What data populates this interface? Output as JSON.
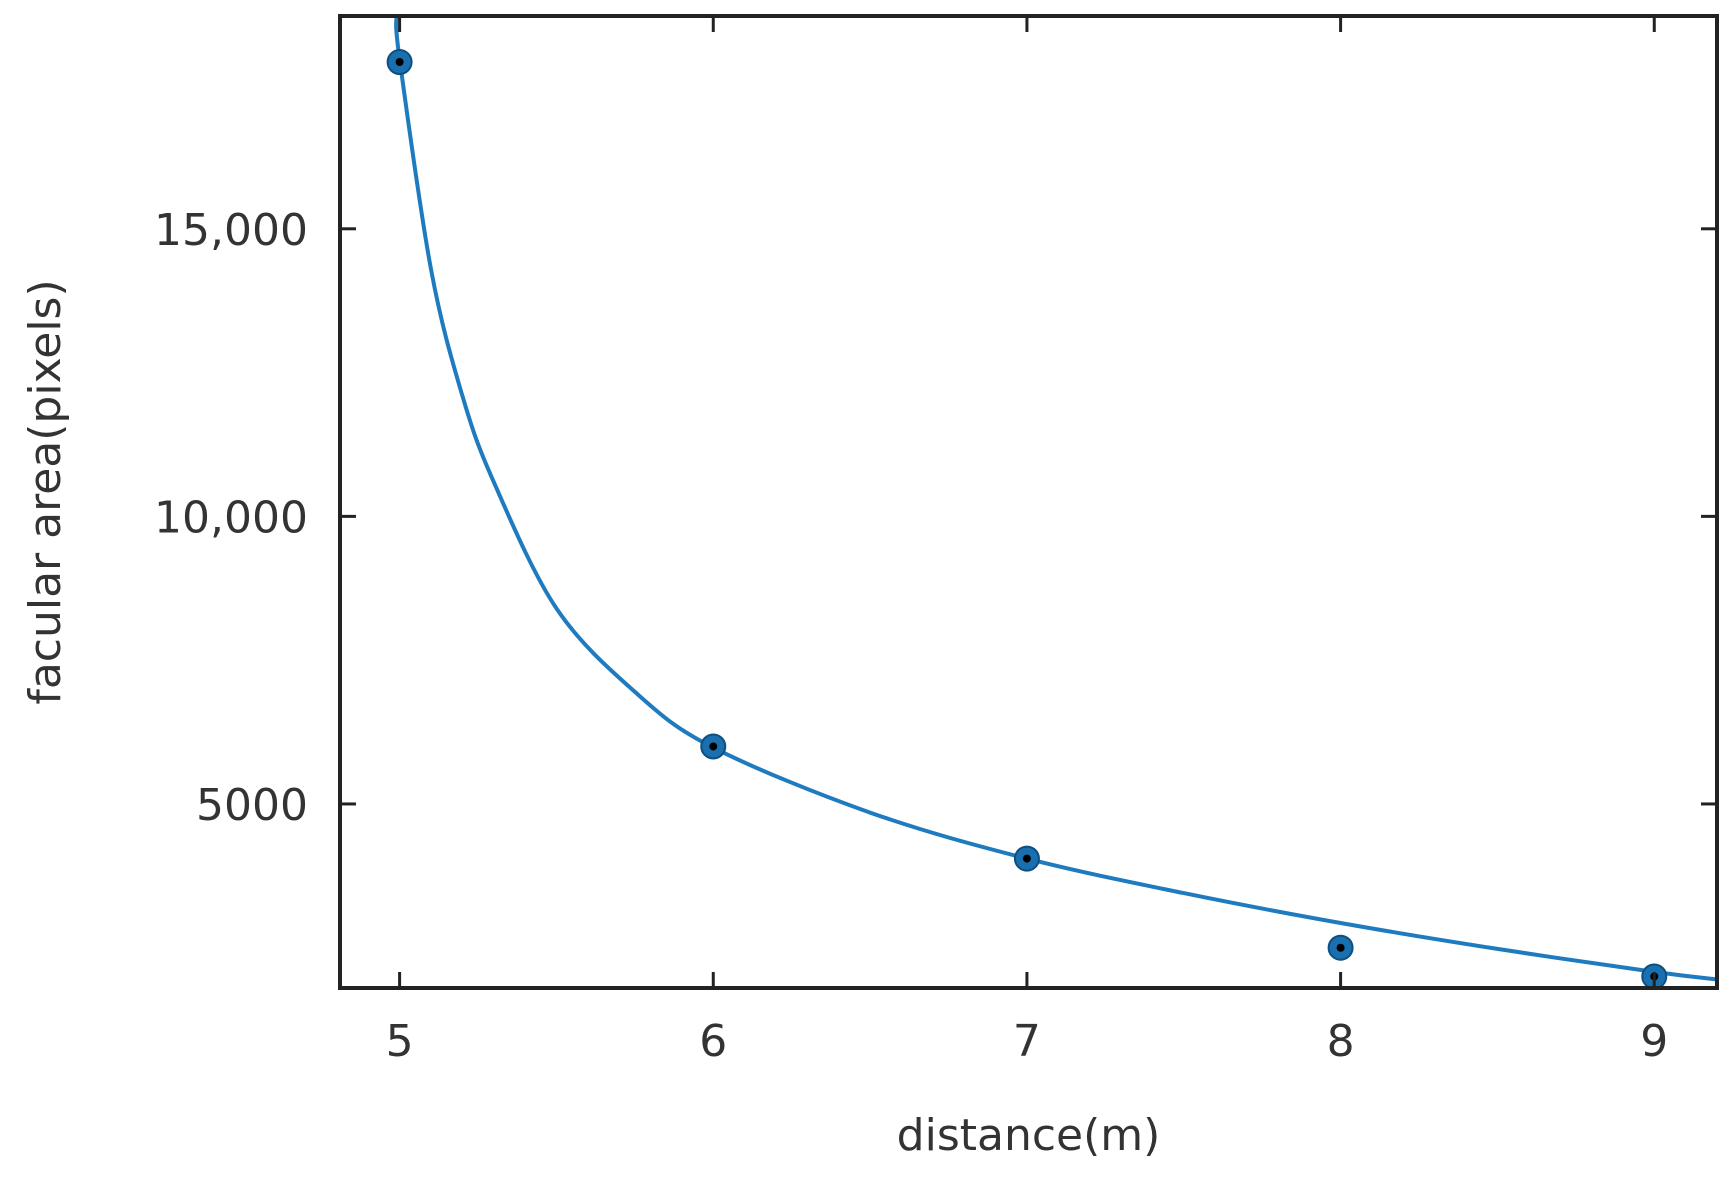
{
  "chart_data": {
    "type": "scatter",
    "title": "",
    "xlabel": "distance(m)",
    "ylabel": "facular area(pixels)",
    "xlim": [
      4.81,
      9.2
    ],
    "ylim": [
      1800,
      18700
    ],
    "x_ticks": [
      5,
      6,
      7,
      8,
      9
    ],
    "x_tick_labels": [
      "5",
      "6",
      "7",
      "8",
      "9"
    ],
    "y_ticks": [
      5000,
      10000,
      15000
    ],
    "y_tick_labels": [
      "5000",
      "10,000",
      "15,000"
    ],
    "grid": false,
    "legend": "none",
    "series": [
      {
        "kind": "points",
        "x": [
          5,
          6,
          7,
          8,
          9
        ],
        "y": [
          17900,
          6000,
          4050,
          2500,
          2000
        ]
      },
      {
        "kind": "fitted-curve",
        "fit": "power-law",
        "color": "#1f7bbf",
        "samples": [
          {
            "x": 4.99,
            "y": 18700
          },
          {
            "x": 5.0,
            "y": 17950
          },
          {
            "x": 5.1,
            "y": 14300
          },
          {
            "x": 5.2,
            "y": 12100
          },
          {
            "x": 5.3,
            "y": 10600
          },
          {
            "x": 5.5,
            "y": 8400
          },
          {
            "x": 5.75,
            "y": 6950
          },
          {
            "x": 6.0,
            "y": 5980
          },
          {
            "x": 6.5,
            "y": 4850
          },
          {
            "x": 7.0,
            "y": 4050
          },
          {
            "x": 7.5,
            "y": 3450
          },
          {
            "x": 8.0,
            "y": 2930
          },
          {
            "x": 8.5,
            "y": 2480
          },
          {
            "x": 9.0,
            "y": 2080
          },
          {
            "x": 9.2,
            "y": 1950
          }
        ]
      }
    ],
    "colors": {
      "curve": "#1f7bbf",
      "marker": "#1a6fae",
      "marker_center": "#000000",
      "axes": "#222222",
      "text": "#333333"
    }
  }
}
